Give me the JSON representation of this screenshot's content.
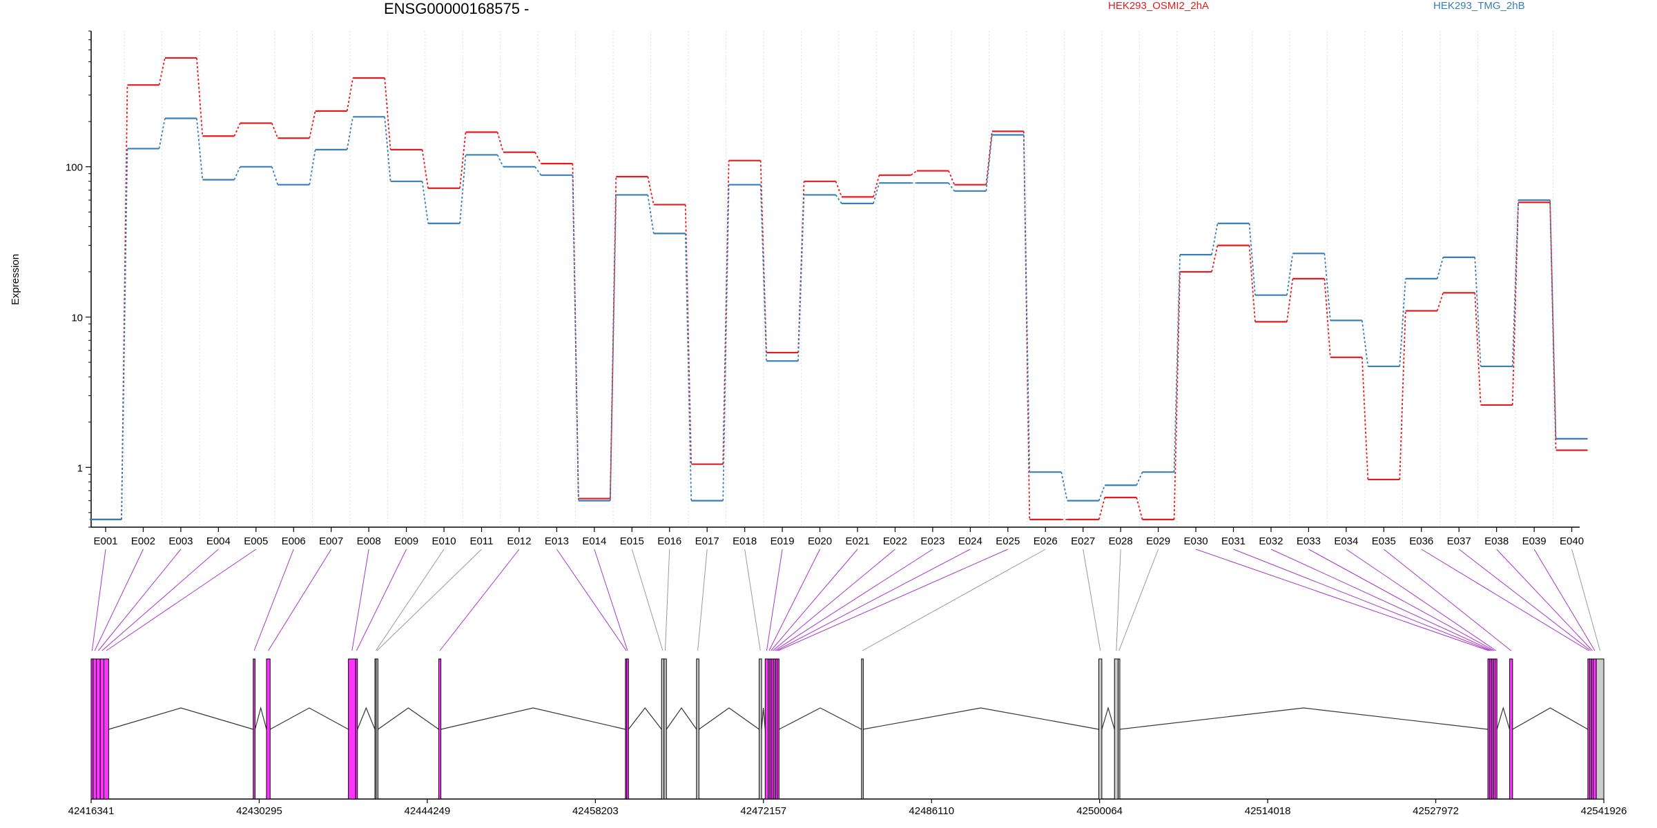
{
  "chart_data": {
    "type": "line",
    "title": "ENSG00000168575 -",
    "ylabel": "Expression",
    "xlabel": "",
    "y_scale": "log",
    "ylim": [
      0.4,
      800
    ],
    "yticks": [
      "1",
      "10",
      "100"
    ],
    "legend_placement": "top",
    "grid": "vertical dotted",
    "categories": [
      "E001",
      "E002",
      "E003",
      "E004",
      "E005",
      "E006",
      "E007",
      "E008",
      "E009",
      "E010",
      "E011",
      "E012",
      "E013",
      "E014",
      "E015",
      "E016",
      "E017",
      "E018",
      "E019",
      "E020",
      "E021",
      "E022",
      "E023",
      "E024",
      "E025",
      "E026",
      "E027",
      "E028",
      "E029",
      "E030",
      "E031",
      "E032",
      "E033",
      "E034",
      "E035",
      "E036",
      "E037",
      "E038",
      "E039",
      "E040"
    ],
    "series": [
      {
        "name": "HEK293_OSMI2_2hA",
        "color": "#e41a1c",
        "values": [
          0.45,
          350,
          530,
          160,
          195,
          155,
          235,
          390,
          130,
          72,
          170,
          125,
          105,
          0.62,
          86,
          56,
          1.05,
          110,
          5.8,
          80,
          63,
          88,
          94,
          76,
          172,
          0.45,
          0.45,
          0.63,
          0.45,
          20,
          30,
          9.3,
          18,
          5.4,
          0.83,
          11,
          14.5,
          2.6,
          58,
          1.3
        ]
      },
      {
        "name": "HEK293_TMG_2hB",
        "color": "#377eb8",
        "values": [
          0.45,
          132,
          210,
          82,
          100,
          76,
          130,
          215,
          80,
          42,
          120,
          100,
          88,
          0.6,
          65,
          36,
          0.6,
          76,
          5.1,
          65,
          57,
          78,
          78,
          69,
          163,
          0.93,
          0.6,
          0.76,
          0.93,
          26,
          42,
          14,
          26.5,
          9.5,
          4.7,
          18,
          25,
          4.7,
          60,
          1.55
        ]
      }
    ],
    "gene_model": {
      "coordinate_ticks": [
        "42416341",
        "42430295",
        "42444249",
        "42458203",
        "42472157",
        "42486110",
        "42500064",
        "42514018",
        "42527972",
        "42541926"
      ],
      "coord_range": [
        42416341,
        42541926
      ],
      "exon_colors": {
        "differential": "#ff33ff",
        "other": "#cccccc"
      },
      "exons": [
        {
          "start": 42416341,
          "end": 42416500,
          "diff": true
        },
        {
          "start": 42416500,
          "end": 42416780,
          "diff": true
        },
        {
          "start": 42416780,
          "end": 42417100,
          "diff": true
        },
        {
          "start": 42417100,
          "end": 42417400,
          "diff": true
        },
        {
          "start": 42417400,
          "end": 42417800,
          "diff": true
        },
        {
          "start": 42429800,
          "end": 42429950,
          "diff": true
        },
        {
          "start": 42430900,
          "end": 42431200,
          "diff": true
        },
        {
          "start": 42437700,
          "end": 42438300,
          "diff": true
        },
        {
          "start": 42438300,
          "end": 42438450,
          "diff": true
        },
        {
          "start": 42439900,
          "end": 42440000,
          "diff": false
        },
        {
          "start": 42440000,
          "end": 42440150,
          "diff": false
        },
        {
          "start": 42445200,
          "end": 42445380,
          "diff": true
        },
        {
          "start": 42460700,
          "end": 42460800,
          "diff": true
        },
        {
          "start": 42460800,
          "end": 42460950,
          "diff": true
        },
        {
          "start": 42463700,
          "end": 42463900,
          "diff": false
        },
        {
          "start": 42463900,
          "end": 42464100,
          "diff": false
        },
        {
          "start": 42466600,
          "end": 42466800,
          "diff": false
        },
        {
          "start": 42471800,
          "end": 42472000,
          "diff": false
        },
        {
          "start": 42472300,
          "end": 42472550,
          "diff": true
        },
        {
          "start": 42472550,
          "end": 42472700,
          "diff": true
        },
        {
          "start": 42472700,
          "end": 42472850,
          "diff": true
        },
        {
          "start": 42472850,
          "end": 42473000,
          "diff": true
        },
        {
          "start": 42473000,
          "end": 42473150,
          "diff": true
        },
        {
          "start": 42473150,
          "end": 42473300,
          "diff": true
        },
        {
          "start": 42473300,
          "end": 42473450,
          "diff": true
        },
        {
          "start": 42480300,
          "end": 42480400,
          "diff": false
        },
        {
          "start": 42500000,
          "end": 42500250,
          "diff": false
        },
        {
          "start": 42501300,
          "end": 42501600,
          "diff": false
        },
        {
          "start": 42501600,
          "end": 42501700,
          "diff": false
        },
        {
          "start": 42532300,
          "end": 42532450,
          "diff": true
        },
        {
          "start": 42532450,
          "end": 42532600,
          "diff": true
        },
        {
          "start": 42532600,
          "end": 42532750,
          "diff": true
        },
        {
          "start": 42532750,
          "end": 42532900,
          "diff": true
        },
        {
          "start": 42532900,
          "end": 42533050,
          "diff": true
        },
        {
          "start": 42534100,
          "end": 42534350,
          "diff": true
        },
        {
          "start": 42540600,
          "end": 42540750,
          "diff": true
        },
        {
          "start": 42540750,
          "end": 42540900,
          "diff": true
        },
        {
          "start": 42540900,
          "end": 42541050,
          "diff": true
        },
        {
          "start": 42541050,
          "end": 42541300,
          "diff": true
        },
        {
          "start": 42541300,
          "end": 42541926,
          "diff": false
        }
      ],
      "introns": [
        [
          42417800,
          42429800
        ],
        [
          42429950,
          42430900
        ],
        [
          42431200,
          42437700
        ],
        [
          42438450,
          42439900
        ],
        [
          42440150,
          42445200
        ],
        [
          42445380,
          42460700
        ],
        [
          42460950,
          42463700
        ],
        [
          42464100,
          42466600
        ],
        [
          42466800,
          42471800
        ],
        [
          42472000,
          42472300
        ],
        [
          42473450,
          42480300
        ],
        [
          42480400,
          42500000
        ],
        [
          42500250,
          42501300
        ],
        [
          42501700,
          42532300
        ],
        [
          42533050,
          42534100
        ],
        [
          42534350,
          42540600
        ]
      ]
    }
  }
}
